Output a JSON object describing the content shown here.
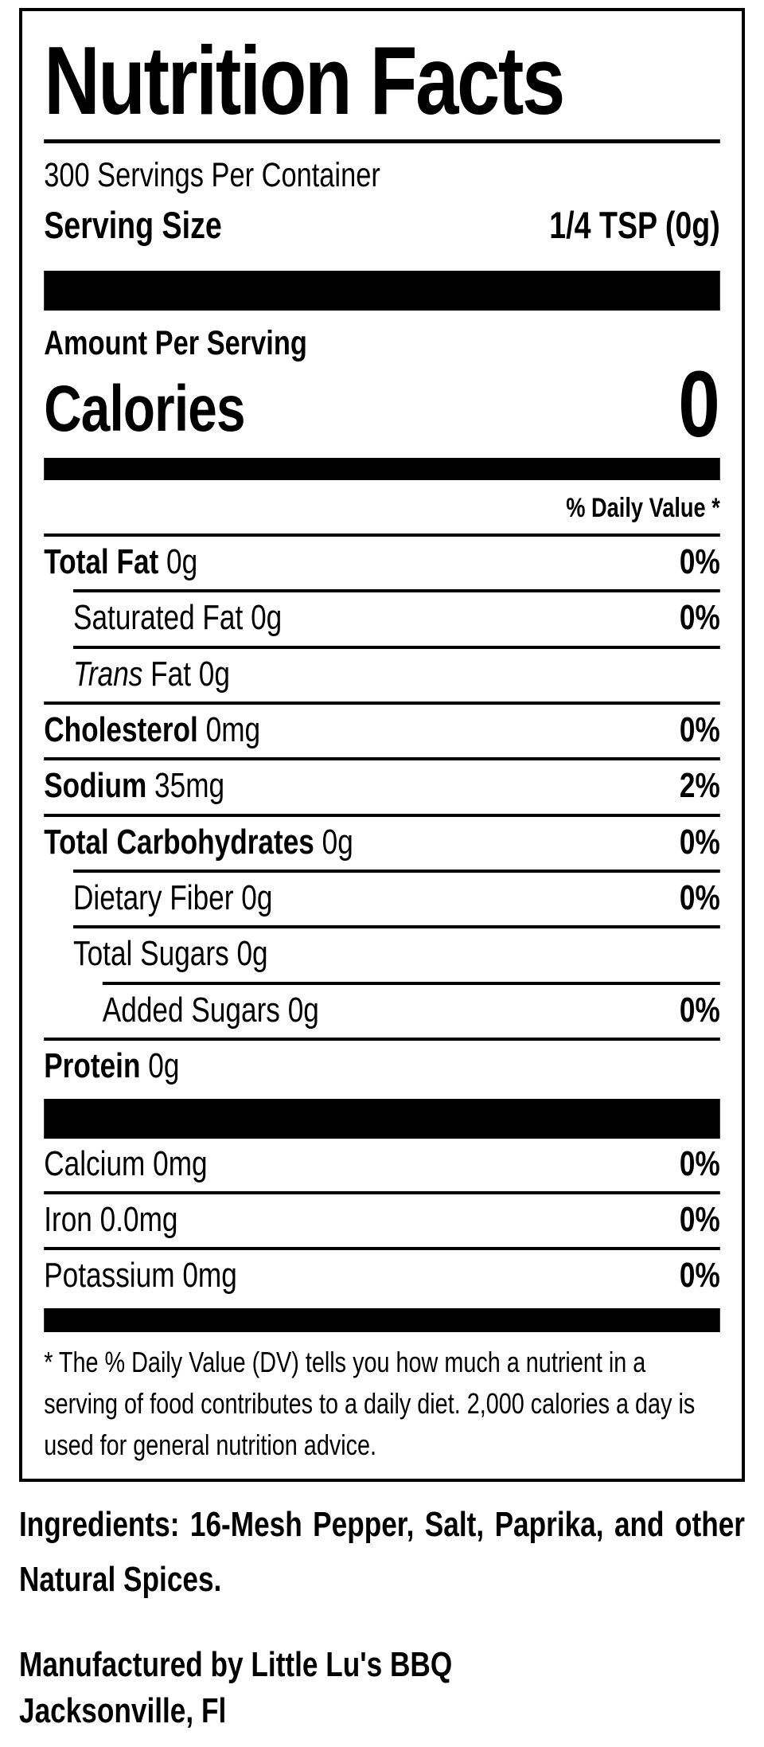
{
  "colors": {
    "ink": "#000000",
    "background": "#ffffff"
  },
  "label": {
    "title": "Nutrition Facts",
    "servings_per_container": "300 Servings Per Container",
    "serving_size_label": "Serving Size",
    "serving_size_value": "1/4 TSP (0g)",
    "amount_per_serving_label": "Amount Per Serving",
    "calories_label": "Calories",
    "calories_value": "0",
    "daily_value_header": "% Daily Value *",
    "nutrients": [
      {
        "name": "Total Fat",
        "amount": "0g",
        "dv": "0%",
        "name_style": "bold",
        "indent": 0
      },
      {
        "name": "Saturated Fat",
        "amount": "0g",
        "dv": "0%",
        "name_style": "regular",
        "indent": 1
      },
      {
        "name": "Trans",
        "amount": "Fat 0g",
        "dv": "",
        "name_style": "italic",
        "indent": 1
      },
      {
        "name": "Cholesterol",
        "amount": "0mg",
        "dv": "0%",
        "name_style": "bold",
        "indent": 0
      },
      {
        "name": "Sodium",
        "amount": "35mg",
        "dv": "2%",
        "name_style": "bold",
        "indent": 0
      },
      {
        "name": "Total Carbohydrates",
        "amount": "0g",
        "dv": "0%",
        "name_style": "bold",
        "indent": 0
      },
      {
        "name": "Dietary Fiber",
        "amount": "0g",
        "dv": "0%",
        "name_style": "regular",
        "indent": 1
      },
      {
        "name": "Total Sugars",
        "amount": "0g",
        "dv": "",
        "name_style": "regular",
        "indent": 1
      },
      {
        "name": "Added Sugars",
        "amount": "0g",
        "dv": "0%",
        "name_style": "regular",
        "indent": 2
      },
      {
        "name": "Protein",
        "amount": "0g",
        "dv": "",
        "name_style": "bold",
        "indent": 0
      }
    ],
    "minerals": [
      {
        "name": "Calcium",
        "amount": "0mg",
        "dv": "0%",
        "name_style": "regular",
        "indent": 0
      },
      {
        "name": "Iron",
        "amount": "0.0mg",
        "dv": "0%",
        "name_style": "regular",
        "indent": 0
      },
      {
        "name": "Potassium",
        "amount": "0mg",
        "dv": "0%",
        "name_style": "regular",
        "indent": 0
      }
    ],
    "footnote": "* The % Daily Value (DV) tells you how much a nutrient in a serving of food contributes to a daily diet. 2,000 calories a day is used for general nutrition advice."
  },
  "ingredients_text": "Ingredients: 16-Mesh Pepper, Salt, Paprika, and other Natural Spices.",
  "manufacturer": {
    "line1": "Manufactured by Little Lu's BBQ",
    "line2": "Jacksonville, Fl"
  }
}
